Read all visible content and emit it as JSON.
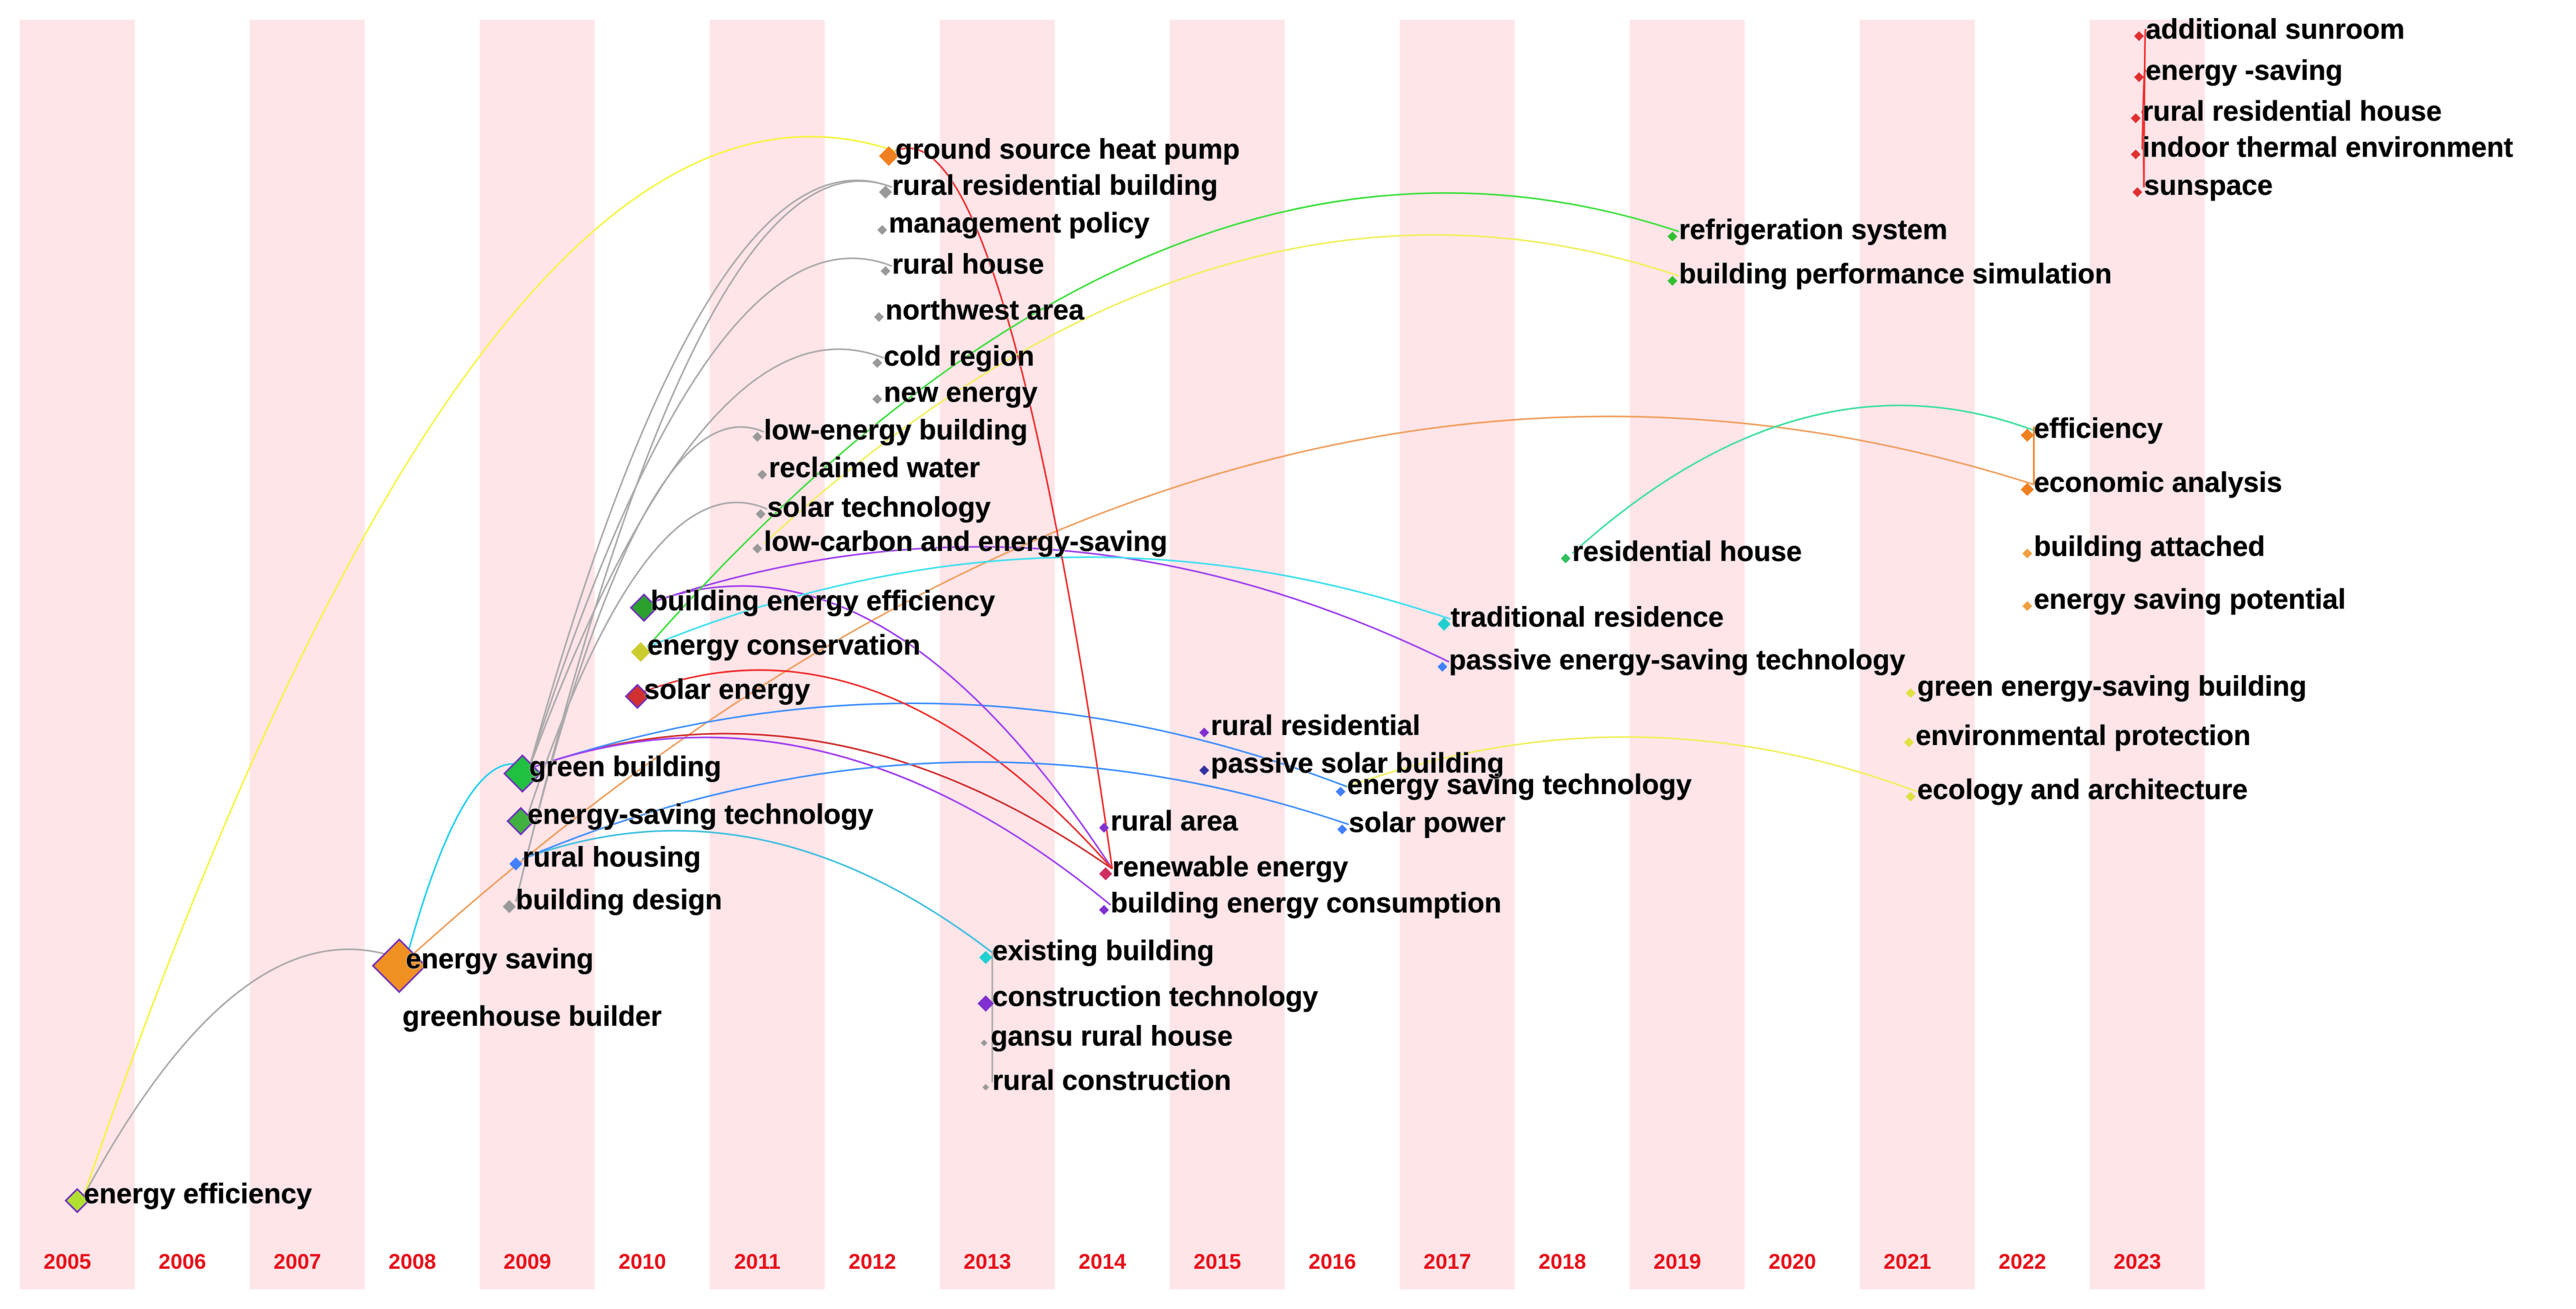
{
  "years": [
    "2005",
    "2006",
    "2007",
    "2008",
    "2009",
    "2010",
    "2011",
    "2012",
    "2013",
    "2014",
    "2015",
    "2016",
    "2017",
    "2018",
    "2019",
    "2020",
    "2021",
    "2022",
    "2023"
  ],
  "nodes": [
    {
      "label": "ground source heat pump"
    },
    {
      "label": "rural residential building"
    },
    {
      "label": "management policy"
    },
    {
      "label": "rural house"
    },
    {
      "label": "northwest area"
    },
    {
      "label": "cold region"
    },
    {
      "label": "new energy"
    },
    {
      "label": "low-energy building"
    },
    {
      "label": "reclaimed water"
    },
    {
      "label": "solar technology"
    },
    {
      "label": "low-carbon and energy-saving"
    },
    {
      "label": "building energy efficiency"
    },
    {
      "label": "energy conservation"
    },
    {
      "label": "solar energy"
    },
    {
      "label": "green building"
    },
    {
      "label": "energy-saving technology"
    },
    {
      "label": "rural housing"
    },
    {
      "label": "building design"
    },
    {
      "label": "energy saving"
    },
    {
      "label": "greenhouse builder"
    },
    {
      "label": "energy efficiency"
    },
    {
      "label": "existing building"
    },
    {
      "label": "construction technology"
    },
    {
      "label": "gansu rural house"
    },
    {
      "label": "rural construction"
    },
    {
      "label": "rural area"
    },
    {
      "label": "renewable energy"
    },
    {
      "label": "building energy consumption"
    },
    {
      "label": "rural residential"
    },
    {
      "label": "passive solar building"
    },
    {
      "label": "energy saving technology"
    },
    {
      "label": "solar power"
    },
    {
      "label": "traditional residence"
    },
    {
      "label": "passive energy-saving technology"
    },
    {
      "label": "residential house"
    },
    {
      "label": "refrigeration system"
    },
    {
      "label": "building performance simulation"
    },
    {
      "label": "green energy-saving building"
    },
    {
      "label": "environmental protection"
    },
    {
      "label": "ecology and architecture"
    },
    {
      "label": "efficiency"
    },
    {
      "label": "economic analysis"
    },
    {
      "label": "building attached"
    },
    {
      "label": "energy saving potential"
    },
    {
      "label": "additional sunroom"
    },
    {
      "label": "energy -saving"
    },
    {
      "label": "rural residential house"
    },
    {
      "label": "indoor thermal environment"
    },
    {
      "label": "sunspace"
    }
  ]
}
